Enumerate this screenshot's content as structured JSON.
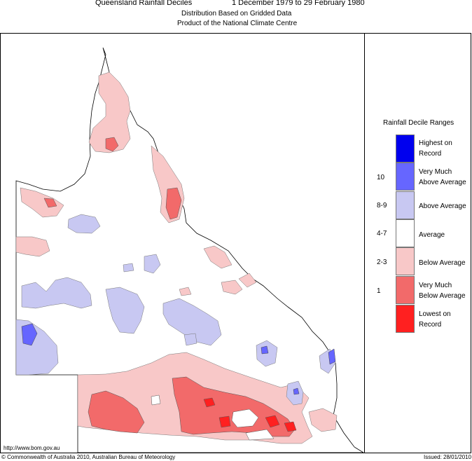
{
  "header": {
    "title": "Queensland Rainfall Deciles",
    "period": "1 December 1979 to 29 February 1980",
    "subtitle1": "Distribution Based on Gridded Data",
    "subtitle2": "Product of the National Climate Centre"
  },
  "legend": {
    "title": "Rainfall Decile Ranges",
    "items": [
      {
        "line1": "Highest on",
        "line2": "Record",
        "decile": "",
        "color": "#0000ee"
      },
      {
        "line1": "Very Much",
        "line2": "Above Average",
        "decile": "10",
        "color": "#6666ff"
      },
      {
        "line1": "Above Average",
        "line2": "",
        "decile": "8-9",
        "color": "#c8c8f2"
      },
      {
        "line1": "Average",
        "line2": "",
        "decile": "4-7",
        "color": "#ffffff"
      },
      {
        "line1": "Below Average",
        "line2": "",
        "decile": "2-3",
        "color": "#f8c8c8"
      },
      {
        "line1": "Very Much",
        "line2": "Below Average",
        "decile": "1",
        "color": "#f26a6a"
      },
      {
        "line1": "Lowest on",
        "line2": "Record",
        "decile": "",
        "color": "#ff2020"
      }
    ]
  },
  "footer": {
    "url": "http://www.bom.gov.au",
    "copyright": "© Commonwealth of Australia 2010, Australian Bureau of Meteorology",
    "issued": "Issued: 28/01/2010"
  }
}
